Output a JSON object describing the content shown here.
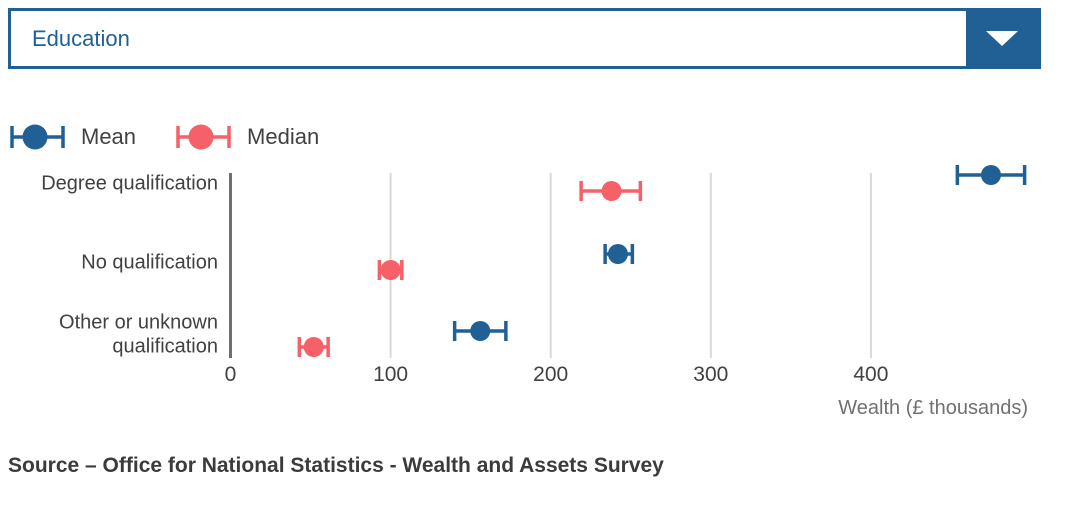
{
  "dropdown": {
    "value": "Education"
  },
  "legend": {
    "items": [
      {
        "label": "Mean",
        "color": "#206095"
      },
      {
        "label": "Median",
        "color": "#f66068"
      }
    ]
  },
  "chart_data": {
    "type": "scatter",
    "subtype": "dot-plot-with-error-bars",
    "categories": [
      "Degree qualification",
      "No qualification",
      "Other or unknown qualification"
    ],
    "category_lines": [
      [
        "Degree qualification"
      ],
      [
        "No qualification"
      ],
      [
        "Other or unknown",
        "qualification"
      ]
    ],
    "series": [
      {
        "name": "Mean",
        "color": "#206095",
        "values": [
          475,
          242,
          156
        ],
        "ci_low": [
          454,
          234,
          140
        ],
        "ci_high": [
          496,
          251,
          172
        ]
      },
      {
        "name": "Median",
        "color": "#f66068",
        "values": [
          238,
          100,
          52
        ],
        "ci_low": [
          219,
          93,
          43
        ],
        "ci_high": [
          256,
          107,
          61
        ]
      }
    ],
    "xlabel": "Wealth (£ thousands)",
    "xticks": [
      0,
      100,
      200,
      300,
      400
    ],
    "xlim": [
      0,
      505
    ],
    "grid": true,
    "legend_position": "top-left"
  },
  "source": {
    "text": "Source – Office for National Statistics - Wealth and Assets Survey"
  },
  "colors": {
    "accent": "#206095",
    "coral": "#f66068",
    "grid_line": "#d9d9d9",
    "zero_axis_line": "#6f6f6f",
    "text": "#414042",
    "muted": "#707070"
  }
}
